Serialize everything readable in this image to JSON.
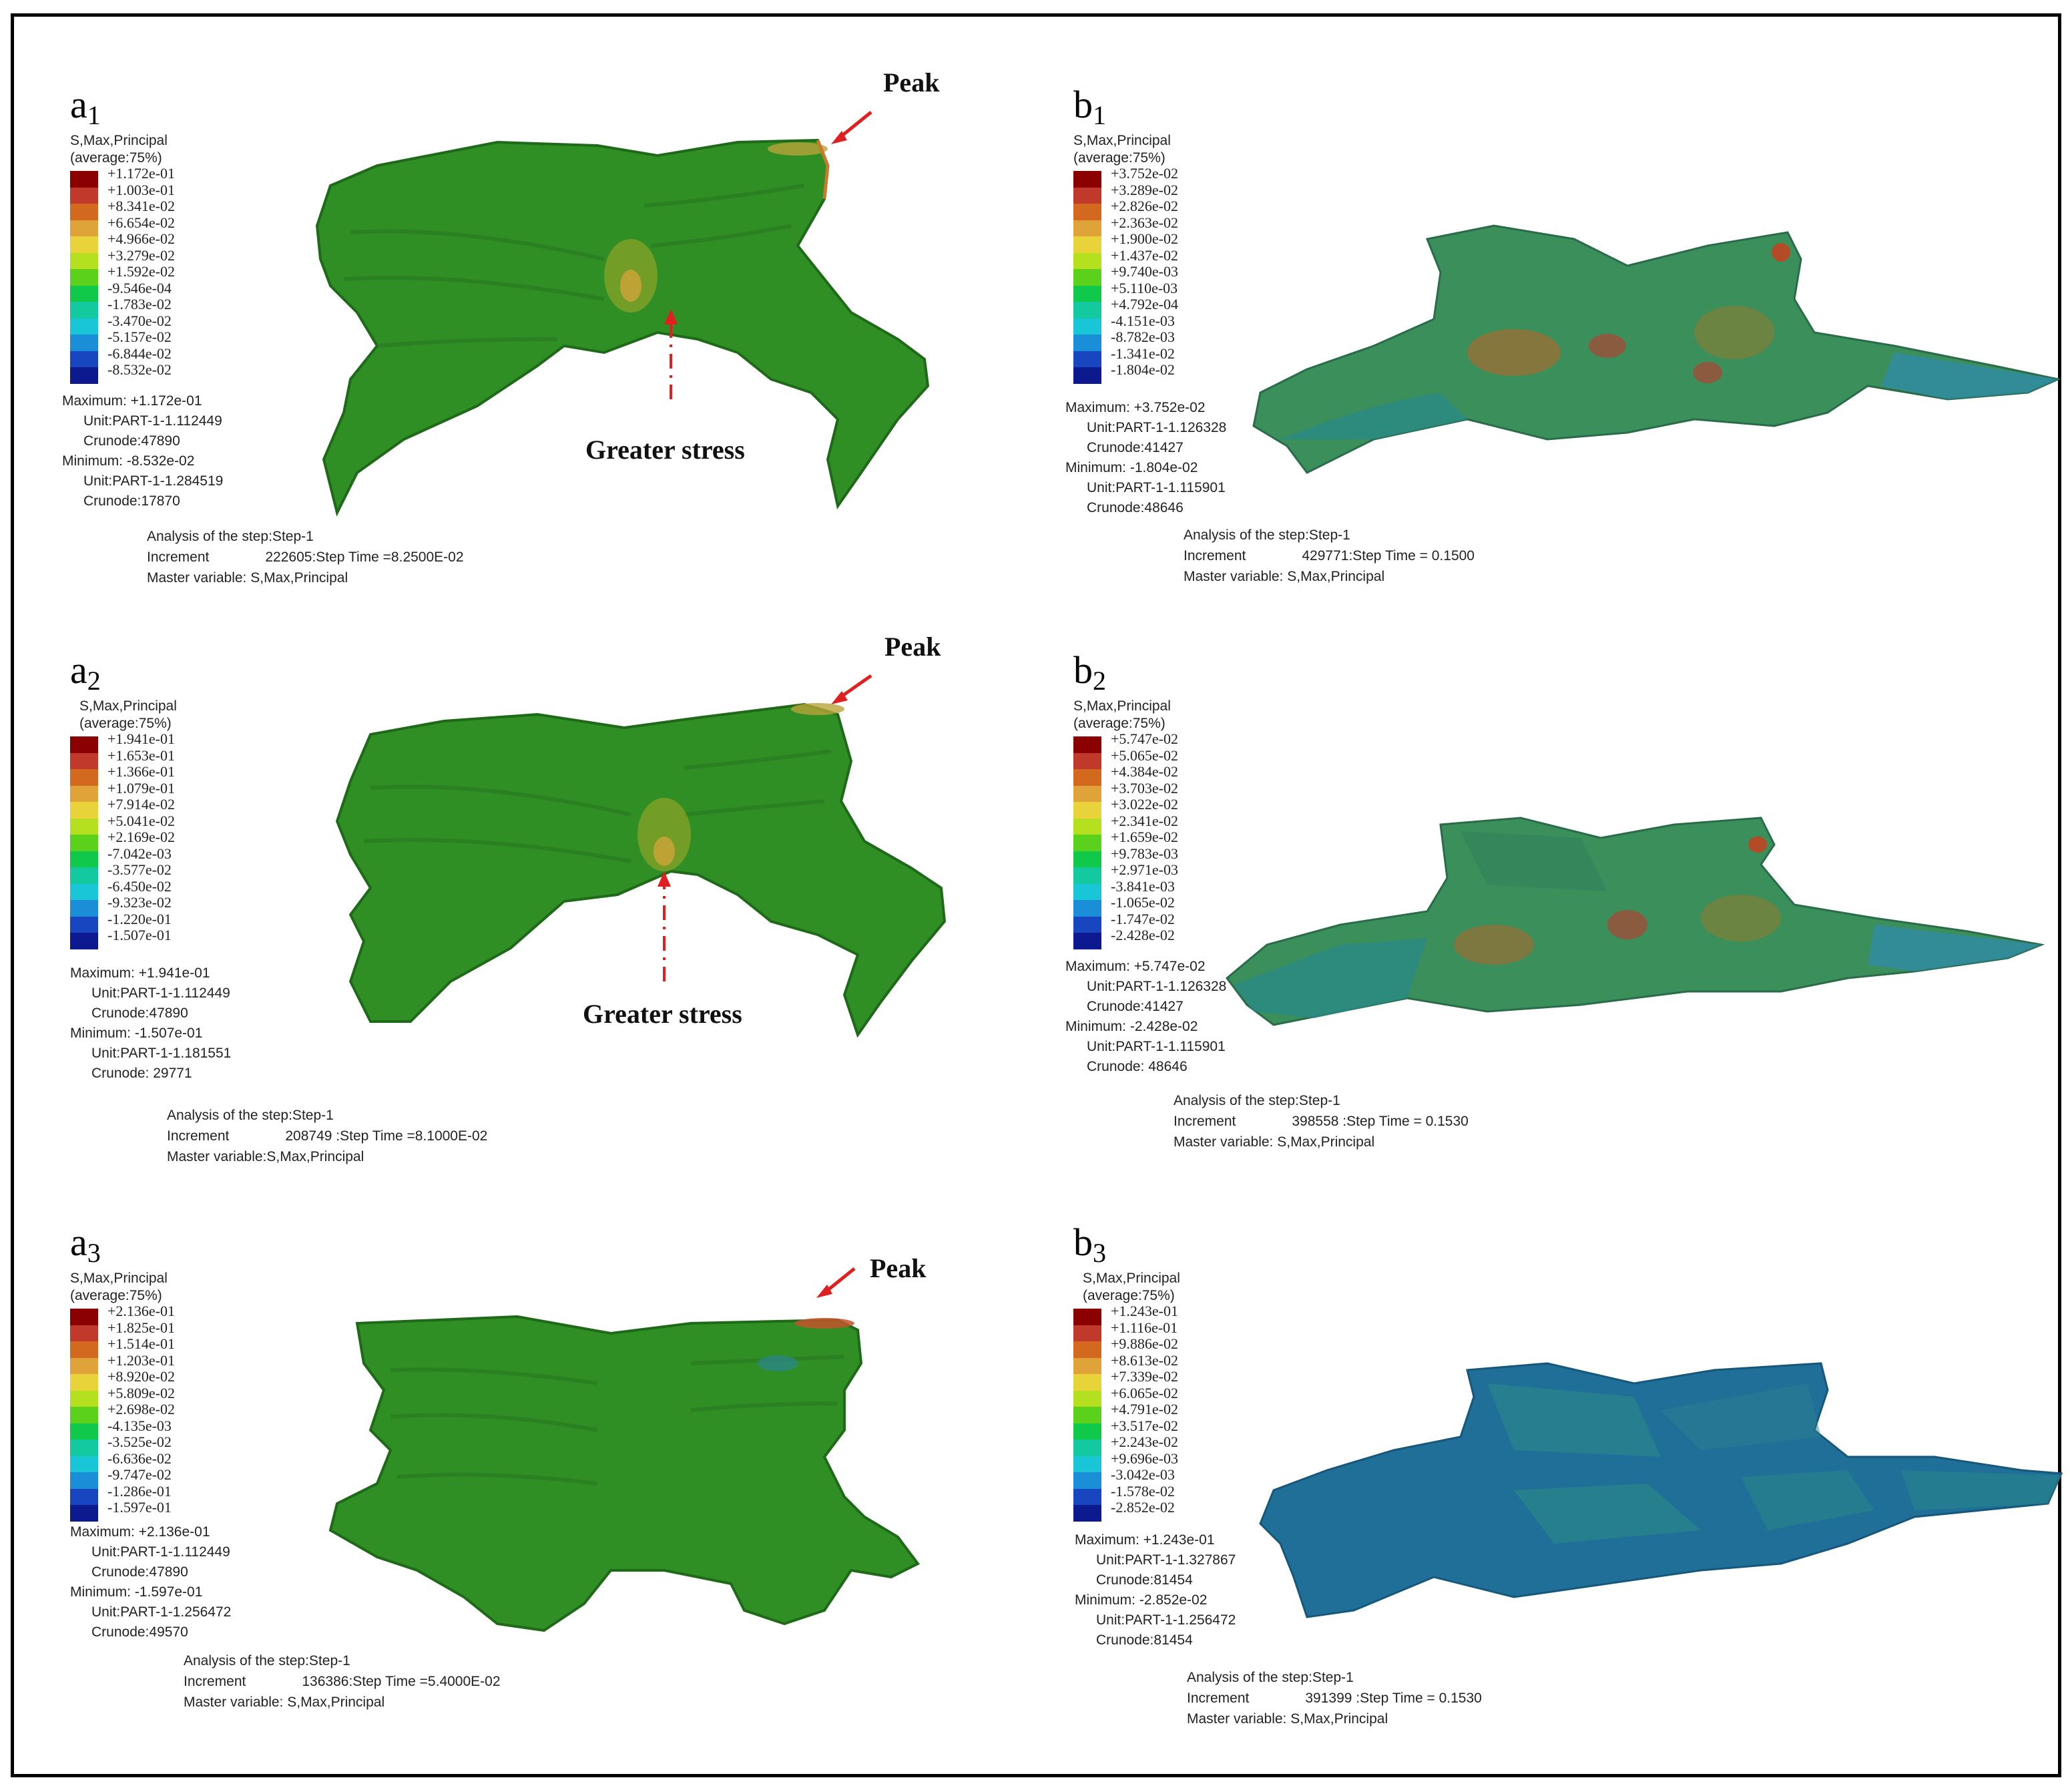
{
  "colors": {
    "frame": "#000000",
    "arrow": "#e02020",
    "model_green": "#2f8f25",
    "model_teal": "#2b8a86",
    "model_blue": "#1f6f99",
    "hot_red": "#d23a1a"
  },
  "panels": [
    {
      "id": "a1",
      "label_main": "a",
      "label_sub": "1",
      "legend_title_1": "S,Max,Principal",
      "legend_title_2": "(average:75%)",
      "legend_values": [
        "+1.172e-01",
        "+1.003e-01",
        "+8.341e-02",
        "+6.654e-02",
        "+4.966e-02",
        "+3.279e-02",
        "+1.592e-02",
        "-9.546e-04",
        "-1.783e-02",
        "-3.470e-02",
        "-5.157e-02",
        "-6.844e-02",
        "-8.532e-02"
      ],
      "max_line": "Maximum: +1.172e-01",
      "max_unit": "Unit:PART-1-1.112449",
      "max_node": "Crunode:47890",
      "min_line": "Minimum: -8.532e-02",
      "min_unit": "Unit:PART-1-1.284519",
      "min_node": "Crunode:17870",
      "analysis": "Analysis of the step:Step-1",
      "increment_label": "Increment",
      "increment_value": "222605:Step Time =8.2500E-02",
      "master": "Master variable: S,Max,Principal",
      "peak_label": "Peak",
      "stress_label": "Greater stress"
    },
    {
      "id": "b1",
      "label_main": "b",
      "label_sub": "1",
      "legend_title_1": "S,Max,Principal",
      "legend_title_2": "(average:75%)",
      "legend_values": [
        "+3.752e-02",
        "+3.289e-02",
        "+2.826e-02",
        "+2.363e-02",
        "+1.900e-02",
        "+1.437e-02",
        "+9.740e-03",
        "+5.110e-03",
        "+4.792e-04",
        "-4.151e-03",
        "-8.782e-03",
        "-1.341e-02",
        "-1.804e-02"
      ],
      "max_line": "Maximum: +3.752e-02",
      "max_unit": "Unit:PART-1-1.126328",
      "max_node": "Crunode:41427",
      "min_line": "Minimum: -1.804e-02",
      "min_unit": "Unit:PART-1-1.115901",
      "min_node": "Crunode:48646",
      "analysis": "Analysis of the step:Step-1",
      "increment_label": "Increment",
      "increment_value": "429771:Step Time = 0.1500",
      "master": "Master variable: S,Max,Principal"
    },
    {
      "id": "a2",
      "label_main": "a",
      "label_sub": "2",
      "legend_title_1": "S,Max,Principal",
      "legend_title_2": "(average:75%)",
      "legend_values": [
        "+1.941e-01",
        "+1.653e-01",
        "+1.366e-01",
        "+1.079e-01",
        "+7.914e-02",
        "+5.041e-02",
        "+2.169e-02",
        "-7.042e-03",
        "-3.577e-02",
        "-6.450e-02",
        "-9.323e-02",
        "-1.220e-01",
        "-1.507e-01"
      ],
      "max_line": "Maximum: +1.941e-01",
      "max_unit": "Unit:PART-1-1.112449",
      "max_node": "Crunode:47890",
      "min_line": "Minimum: -1.507e-01",
      "min_unit": "Unit:PART-1-1.181551",
      "min_node": "Crunode: 29771",
      "analysis": "Analysis of the step:Step-1",
      "increment_label": "Increment",
      "increment_value": "208749 :Step Time =8.1000E-02",
      "master": "Master variable:S,Max,Principal",
      "peak_label": "Peak",
      "stress_label": "Greater stress"
    },
    {
      "id": "b2",
      "label_main": "b",
      "label_sub": "2",
      "legend_title_1": "S,Max,Principal",
      "legend_title_2": "(average:75%)",
      "legend_values": [
        "+5.747e-02",
        "+5.065e-02",
        "+4.384e-02",
        "+3.703e-02",
        "+3.022e-02",
        "+2.341e-02",
        "+1.659e-02",
        "+9.783e-03",
        "+2.971e-03",
        "-3.841e-03",
        "-1.065e-02",
        "-1.747e-02",
        "-2.428e-02"
      ],
      "max_line": "Maximum: +5.747e-02",
      "max_unit": "Unit:PART-1-1.126328",
      "max_node": "Crunode:41427",
      "min_line": "Minimum: -2.428e-02",
      "min_unit": "Unit:PART-1-1.115901",
      "min_node": "Crunode: 48646",
      "analysis": "Analysis of the step:Step-1",
      "increment_label": "Increment",
      "increment_value": "398558 :Step Time = 0.1530",
      "master": "Master variable: S,Max,Principal"
    },
    {
      "id": "a3",
      "label_main": "a",
      "label_sub": "3",
      "legend_title_1": "S,Max,Principal",
      "legend_title_2": "(average:75%)",
      "legend_values": [
        "+2.136e-01",
        "+1.825e-01",
        "+1.514e-01",
        "+1.203e-01",
        "+8.920e-02",
        "+5.809e-02",
        "+2.698e-02",
        "-4.135e-03",
        "-3.525e-02",
        "-6.636e-02",
        "-9.747e-02",
        "-1.286e-01",
        "-1.597e-01"
      ],
      "max_line": "Maximum: +2.136e-01",
      "max_unit": "Unit:PART-1-1.112449",
      "max_node": "Crunode:47890",
      "min_line": "Minimum: -1.597e-01",
      "min_unit": "Unit:PART-1-1.256472",
      "min_node": "Crunode:49570",
      "analysis": "Analysis of the step:Step-1",
      "increment_label": "Increment",
      "increment_value": "136386:Step Time =5.4000E-02",
      "master": "Master variable: S,Max,Principal",
      "peak_label": "Peak"
    },
    {
      "id": "b3",
      "label_main": "b",
      "label_sub": "3",
      "legend_title_1": "S,Max,Principal",
      "legend_title_2": "(average:75%)",
      "legend_values": [
        "+1.243e-01",
        "+1.116e-01",
        "+9.886e-02",
        "+8.613e-02",
        "+7.339e-02",
        "+6.065e-02",
        "+4.791e-02",
        "+3.517e-02",
        "+2.243e-02",
        "+9.696e-03",
        "-3.042e-03",
        "-1.578e-02",
        "-2.852e-02"
      ],
      "max_line": "Maximum: +1.243e-01",
      "max_unit": "Unit:PART-1-1.327867",
      "max_node": "Crunode:81454",
      "min_line": "Minimum: -2.852e-02",
      "min_unit": "Unit:PART-1-1.256472",
      "min_node": "Crunode:81454",
      "analysis": "Analysis of the step:Step-1",
      "increment_label": "Increment",
      "increment_value": "391399 :Step Time = 0.1530",
      "master": "Master variable: S,Max,Principal"
    }
  ]
}
